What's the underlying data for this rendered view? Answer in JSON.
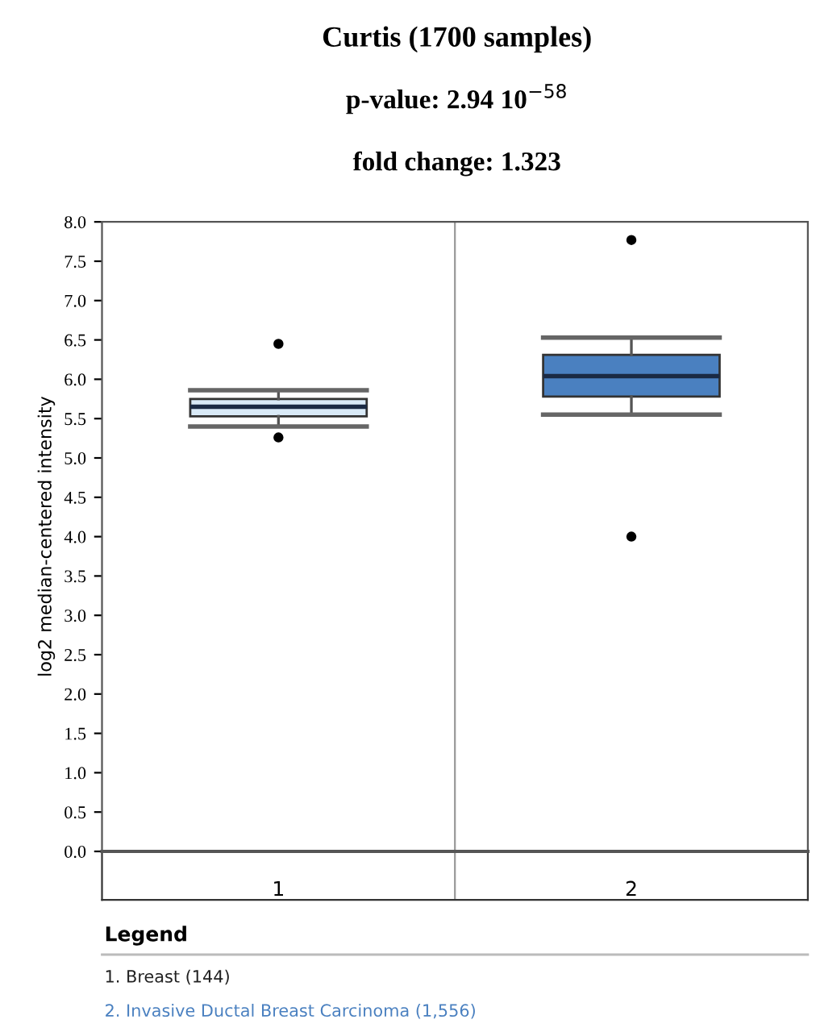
{
  "chart_data": {
    "type": "box",
    "title": "Curtis (1700 samples)",
    "subtitle": "p-value: 2.94 10$^{−58}$",
    "ylabel": "log2 median-centered intensity",
    "categories": [
      "1",
      "2"
    ],
    "boxes": [
      {
        "low": 5.4,
        "q1": 5.53,
        "median": 5.65,
        "q3": 5.75,
        "high": 5.86,
        "outliers": [
          6.45,
          5.26
        ]
      },
      {
        "low": 5.55,
        "q1": 5.78,
        "median": 6.04,
        "q3": 6.31,
        "high": 6.53,
        "outliers": [
          7.77,
          4.0
        ]
      }
    ],
    "colors": [
      "#d9eaf7",
      "#4a80c0"
    ],
    "ylim": [
      0,
      8
    ],
    "yticks": [
      {
        "value": 0,
        "label": "0.0"
      },
      {
        "value": 0.5,
        "label": "0.5"
      },
      {
        "value": 1,
        "label": "1.0"
      },
      {
        "value": 1.5,
        "label": "1.5"
      },
      {
        "value": 2,
        "label": "2.0"
      },
      {
        "value": 2.5,
        "label": "2.5"
      },
      {
        "value": 3,
        "label": "3.0"
      },
      {
        "value": 3.5,
        "label": "3.5"
      },
      {
        "value": 4,
        "label": "4.0"
      },
      {
        "value": 4.5,
        "label": "4.5"
      },
      {
        "value": 5,
        "label": "5.0"
      },
      {
        "value": 5.5,
        "label": "5.5"
      },
      {
        "value": 6,
        "label": "6.0"
      },
      {
        "value": 6.5,
        "label": "6.5"
      },
      {
        "value": 7,
        "label": "7.0"
      },
      {
        "value": 7.5,
        "label": "7.5"
      },
      {
        "value": 8,
        "label": "8.0"
      }
    ],
    "grid": false,
    "legend": false,
    "annotations": [
      "fold change: 1.323",
      "Legend",
      "1. Breast (144)",
      "2. Invasive Ductal Breast Carcinoma (1,556)"
    ]
  }
}
